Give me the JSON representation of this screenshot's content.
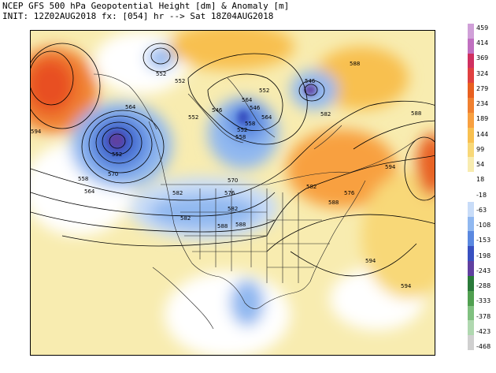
{
  "header": {
    "title": "NCEP GFS 500 hPa Geopotential Height [dm] & Anomaly [m]",
    "init": "INIT: 12Z02AUG2018 fx: [054] hr --> Sat 18Z04AUG2018"
  },
  "colorbar": {
    "labels": [
      "459",
      "414",
      "369",
      "324",
      "279",
      "234",
      "189",
      "144",
      "99",
      "54",
      "18",
      "-18",
      "-63",
      "-108",
      "-153",
      "-198",
      "-243",
      "-288",
      "-333",
      "-378",
      "-423",
      "-468"
    ],
    "colors": [
      "#d0a0d8",
      "#c070c0",
      "#d03060",
      "#e04040",
      "#e86020",
      "#f08030",
      "#f8a040",
      "#f8c050",
      "#f8d878",
      "#f8ecb0",
      "#ffffff",
      "#ffffff",
      "#c8dcf8",
      "#90b8f0",
      "#5a88e0",
      "#3850c0",
      "#6040a0",
      "#2a7a3a",
      "#50a050",
      "#80c080",
      "#b0d8b0",
      "#d0d0d0"
    ]
  },
  "contours": {
    "labels": [
      "552",
      "552",
      "564",
      "570",
      "546",
      "546",
      "552",
      "558",
      "582",
      "588",
      "588",
      "594",
      "594",
      "594",
      "552",
      "570",
      "576",
      "582",
      "588",
      "564",
      "558",
      "564",
      "552",
      "576",
      "582",
      "588",
      "582",
      "558",
      "564",
      "552",
      "546",
      "582",
      "588",
      "594"
    ]
  }
}
